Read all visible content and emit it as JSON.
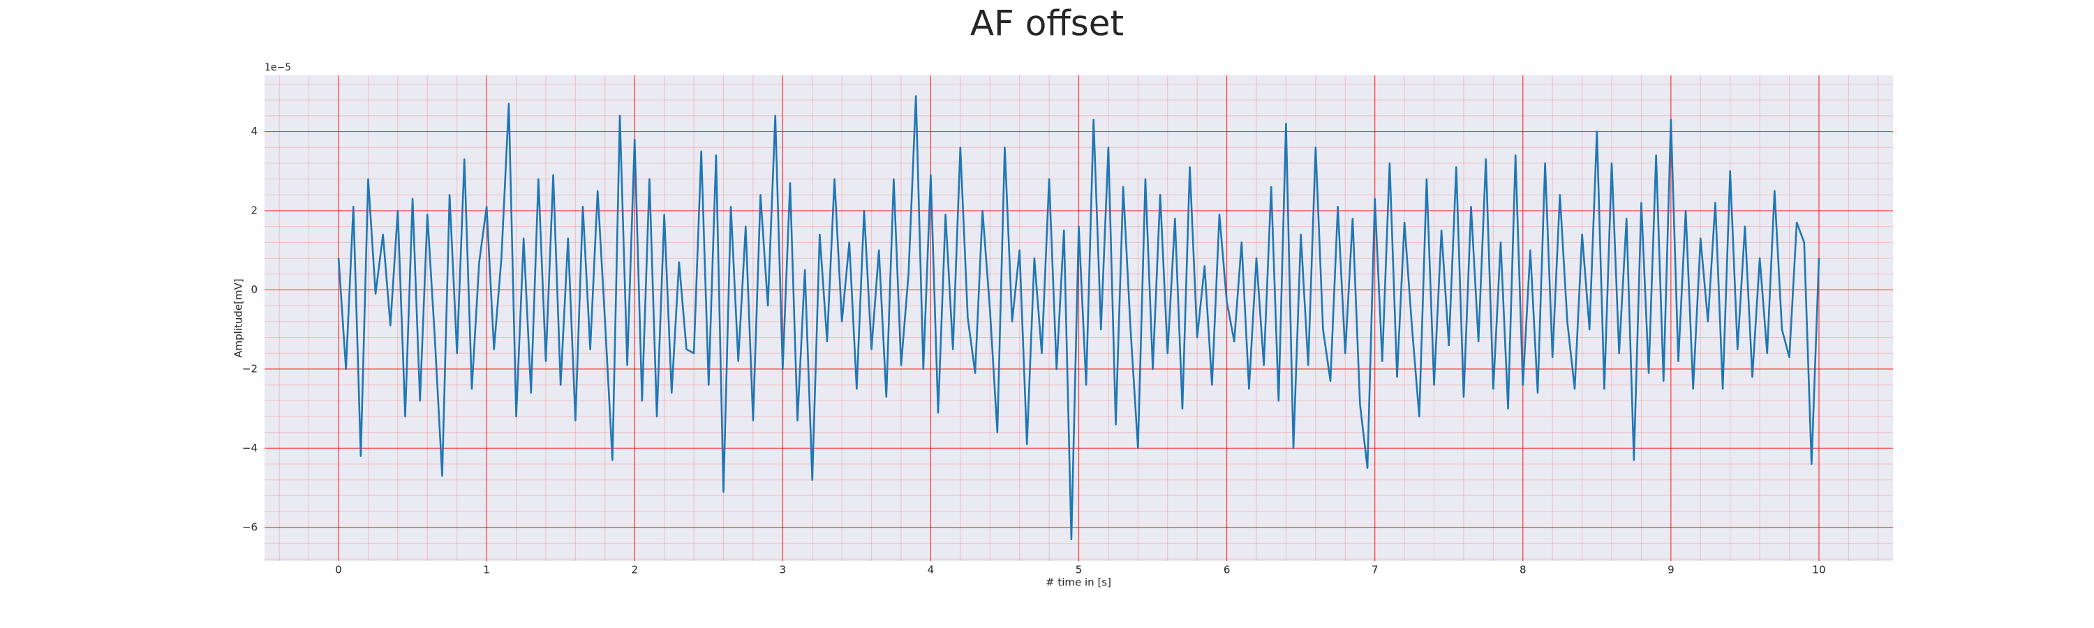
{
  "chart_data": {
    "type": "line",
    "title": "AF offset",
    "xlabel": "# time in [s]",
    "ylabel": "Amplitude[mV]",
    "y_offset_label": "1e−5",
    "color": "#1f77b4",
    "background": "#eaeaf2",
    "grid": true,
    "minor_grid": true,
    "grid_color": "#ff0000",
    "xlim": [
      -0.5,
      10.5
    ],
    "xticks": [
      0,
      1,
      2,
      3,
      4,
      5,
      6,
      7,
      8,
      9,
      10
    ],
    "ylim": [
      -6.85e-05,
      5.42e-05
    ],
    "yticks": [
      {
        "value": -6e-05,
        "label": "−6"
      },
      {
        "value": -4e-05,
        "label": "−4"
      },
      {
        "value": -2e-05,
        "label": "−2"
      },
      0,
      {
        "value": 2e-05,
        "label": "2"
      },
      {
        "value": 4e-05,
        "label": "4"
      }
    ],
    "x": [
      0,
      0.05,
      0.1,
      0.15,
      0.2,
      0.25,
      0.3,
      0.35,
      0.4,
      0.45,
      0.5,
      0.55,
      0.6,
      0.65,
      0.7,
      0.75,
      0.8,
      0.85,
      0.9,
      0.95,
      1,
      1.05,
      1.1,
      1.15,
      1.2,
      1.25,
      1.3,
      1.35,
      1.4,
      1.45,
      1.5,
      1.55,
      1.6,
      1.65,
      1.7,
      1.75,
      1.8,
      1.85,
      1.9,
      1.95,
      2,
      2.05,
      2.1,
      2.15,
      2.2,
      2.25,
      2.3,
      2.35,
      2.4,
      2.45,
      2.5,
      2.55,
      2.6,
      2.65,
      2.7,
      2.75,
      2.8,
      2.85,
      2.9,
      2.95,
      3,
      3.05,
      3.1,
      3.15,
      3.2,
      3.25,
      3.3,
      3.35,
      3.4,
      3.45,
      3.5,
      3.55,
      3.6,
      3.65,
      3.7,
      3.75,
      3.8,
      3.85,
      3.9,
      3.95,
      4,
      4.05,
      4.1,
      4.15,
      4.2,
      4.25,
      4.3,
      4.35,
      4.4,
      4.45,
      4.5,
      4.55,
      4.6,
      4.65,
      4.7,
      4.75,
      4.8,
      4.85,
      4.9,
      4.95,
      5,
      5.05,
      5.1,
      5.15,
      5.2,
      5.25,
      5.3,
      5.35,
      5.4,
      5.45,
      5.5,
      5.55,
      5.6,
      5.65,
      5.7,
      5.75,
      5.8,
      5.85,
      5.9,
      5.95,
      6,
      6.05,
      6.1,
      6.15,
      6.2,
      6.25,
      6.3,
      6.35,
      6.4,
      6.45,
      6.5,
      6.55,
      6.6,
      6.65,
      6.7,
      6.75,
      6.8,
      6.85,
      6.9,
      6.95,
      7,
      7.05,
      7.1,
      7.15,
      7.2,
      7.25,
      7.3,
      7.35,
      7.4,
      7.45,
      7.5,
      7.55,
      7.6,
      7.65,
      7.7,
      7.75,
      7.8,
      7.85,
      7.9,
      7.95,
      8,
      8.05,
      8.1,
      8.15,
      8.2,
      8.25,
      8.3,
      8.35,
      8.4,
      8.45,
      8.5,
      8.55,
      8.6,
      8.65,
      8.7,
      8.75,
      8.8,
      8.85,
      8.9,
      8.95,
      9,
      9.05,
      9.1,
      9.15,
      9.2,
      9.25,
      9.3,
      9.35,
      9.4,
      9.45,
      9.5,
      9.55,
      9.6,
      9.65,
      9.7,
      9.75,
      9.8,
      9.85,
      9.9,
      9.95,
      10
    ],
    "values": [
      8e-06,
      -2e-05,
      2.1e-05,
      -4.2e-05,
      2.8e-05,
      -1e-06,
      1.4e-05,
      -9e-06,
      2e-05,
      -3.2e-05,
      2.3e-05,
      -2.8e-05,
      1.9e-05,
      -1.2e-05,
      -4.7e-05,
      2.4e-05,
      -1.6e-05,
      3.3e-05,
      -2.5e-05,
      7e-06,
      2.1e-05,
      -1.5e-05,
      8e-06,
      4.7e-05,
      -3.2e-05,
      1.3e-05,
      -2.6e-05,
      2.8e-05,
      -1.8e-05,
      2.9e-05,
      -2.4e-05,
      1.3e-05,
      -3.3e-05,
      2.1e-05,
      -1.5e-05,
      2.5e-05,
      -8e-06,
      -4.3e-05,
      4.4e-05,
      -1.9e-05,
      3.8e-05,
      -2.8e-05,
      2.8e-05,
      -3.2e-05,
      1.9e-05,
      -2.6e-05,
      7e-06,
      -1.5e-05,
      -1.6e-05,
      3.5e-05,
      -2.4e-05,
      3.4e-05,
      -5.1e-05,
      2.1e-05,
      -1.8e-05,
      1.6e-05,
      -3.3e-05,
      2.4e-05,
      -4e-06,
      4.4e-05,
      -2e-05,
      2.7e-05,
      -3.3e-05,
      5e-06,
      -4.8e-05,
      1.4e-05,
      -1.3e-05,
      2.8e-05,
      -8e-06,
      1.2e-05,
      -2.5e-05,
      2e-05,
      -1.5e-05,
      1e-05,
      -2.7e-05,
      2.8e-05,
      -1.9e-05,
      4e-06,
      4.9e-05,
      -2e-05,
      2.9e-05,
      -3.1e-05,
      1.9e-05,
      -1.5e-05,
      3.6e-05,
      -7e-06,
      -2.1e-05,
      2e-05,
      -5e-06,
      -3.6e-05,
      3.6e-05,
      -8e-06,
      1e-05,
      -3.9e-05,
      8e-06,
      -1.6e-05,
      2.8e-05,
      -2e-05,
      1.5e-05,
      -6.3e-05,
      1.6e-05,
      -2.4e-05,
      4.3e-05,
      -1e-05,
      3.6e-05,
      -3.4e-05,
      2.6e-05,
      -1e-05,
      -4e-05,
      2.8e-05,
      -2e-05,
      2.4e-05,
      -1.6e-05,
      1.8e-05,
      -3e-05,
      3.1e-05,
      -1.2e-05,
      6e-06,
      -2.4e-05,
      1.9e-05,
      -3e-06,
      -1.3e-05,
      1.2e-05,
      -2.5e-05,
      8e-06,
      -1.9e-05,
      2.6e-05,
      -2.8e-05,
      4.2e-05,
      -4e-05,
      1.4e-05,
      -1.9e-05,
      3.6e-05,
      -1e-05,
      -2.3e-05,
      2.1e-05,
      -1.6e-05,
      1.8e-05,
      -2.9e-05,
      -4.5e-05,
      2.3e-05,
      -1.8e-05,
      3.2e-05,
      -2.2e-05,
      1.7e-05,
      -9e-06,
      -3.2e-05,
      2.8e-05,
      -2.4e-05,
      1.5e-05,
      -1.4e-05,
      3.1e-05,
      -2.7e-05,
      2.1e-05,
      -1.3e-05,
      3.3e-05,
      -2.5e-05,
      1.2e-05,
      -3e-05,
      3.4e-05,
      -2.4e-05,
      1e-05,
      -2.6e-05,
      3.2e-05,
      -1.7e-05,
      2.4e-05,
      -8e-06,
      -2.5e-05,
      1.4e-05,
      -1e-05,
      4e-05,
      -2.5e-05,
      3.2e-05,
      -1.6e-05,
      1.8e-05,
      -4.3e-05,
      2.2e-05,
      -2.1e-05,
      3.4e-05,
      -2.3e-05,
      4.3e-05,
      -1.8e-05,
      2e-05,
      -2.5e-05,
      1.3e-05,
      -8e-06,
      2.2e-05,
      -2.5e-05,
      3e-05,
      -1.5e-05,
      1.6e-05,
      -2.2e-05,
      8e-06,
      -1.6e-05,
      2.5e-05,
      -1e-05,
      -1.7e-05,
      1.7e-05,
      1.2e-05,
      -4.4e-05,
      8e-06
    ]
  }
}
